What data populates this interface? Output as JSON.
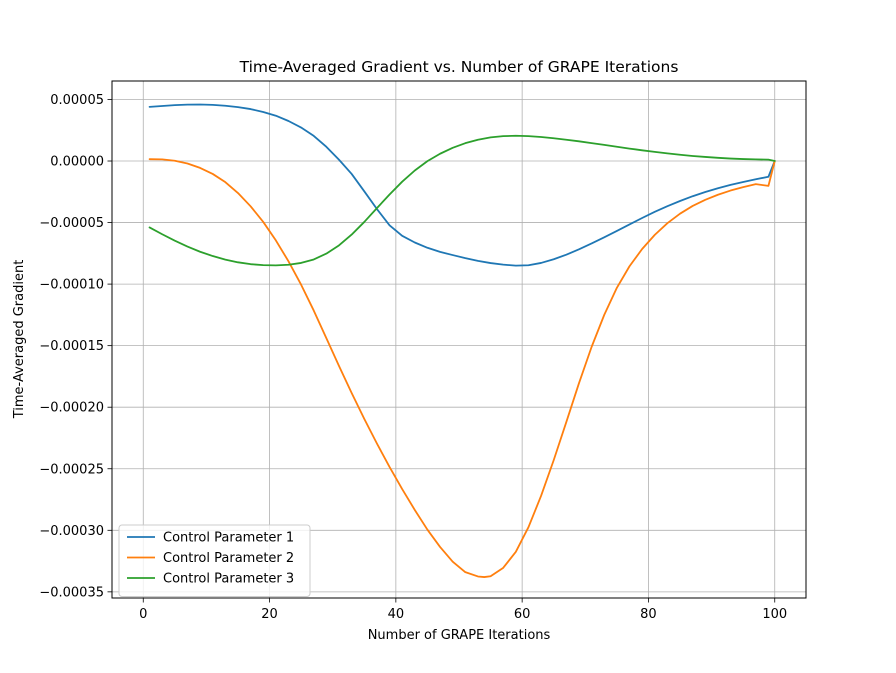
{
  "chart_data": {
    "type": "line",
    "title": "Time-Averaged Gradient vs. Number of GRAPE Iterations",
    "xlabel": "Number of GRAPE Iterations",
    "ylabel": "Time-Averaged Gradient",
    "xlim": [
      -4.95,
      104.95
    ],
    "ylim": [
      -0.000355,
      6.5e-05
    ],
    "xticks": [
      0,
      20,
      40,
      60,
      80,
      100
    ],
    "xtick_labels": [
      "0",
      "20",
      "40",
      "60",
      "80",
      "100"
    ],
    "yticks": [
      5e-05,
      0.0,
      -5e-05,
      -0.0001,
      -0.00015,
      -0.0002,
      -0.00025,
      -0.0003,
      -0.00035
    ],
    "ytick_labels": [
      "0.00005",
      "0.00000",
      "−0.00005",
      "−0.00010",
      "−0.00015",
      "−0.00020",
      "−0.00025",
      "−0.00030",
      "−0.00035"
    ],
    "grid": true,
    "legend_position": "lower-left",
    "series": [
      {
        "name": "Control Parameter 1",
        "color": "#1f77b4",
        "x": [
          1,
          3,
          5,
          7,
          9,
          11,
          13,
          15,
          17,
          19,
          21,
          23,
          25,
          27,
          29,
          31,
          33,
          35,
          37,
          39,
          41,
          43,
          45,
          47,
          49,
          51,
          53,
          55,
          57,
          59,
          61,
          63,
          65,
          67,
          69,
          71,
          73,
          75,
          77,
          79,
          81,
          83,
          85,
          87,
          89,
          91,
          93,
          95,
          97,
          99,
          100
        ],
        "y": [
          4.4e-05,
          4.47e-05,
          4.54e-05,
          4.58e-05,
          4.59e-05,
          4.56e-05,
          4.49e-05,
          4.38e-05,
          4.22e-05,
          3.98e-05,
          3.68e-05,
          3.25e-05,
          2.72e-05,
          2.04e-05,
          1.15e-05,
          1e-06,
          -1.05e-05,
          -2.46e-05,
          -3.9e-05,
          -5.22e-05,
          -6.08e-05,
          -6.62e-05,
          -7.05e-05,
          -7.38e-05,
          -7.64e-05,
          -7.89e-05,
          -8.11e-05,
          -8.29e-05,
          -8.42e-05,
          -8.5e-05,
          -8.47e-05,
          -8.28e-05,
          -7.98e-05,
          -7.61e-05,
          -7.17e-05,
          -6.7e-05,
          -6.2e-05,
          -5.68e-05,
          -5.15e-05,
          -4.63e-05,
          -4.13e-05,
          -3.67e-05,
          -3.25e-05,
          -2.86e-05,
          -2.52e-05,
          -2.21e-05,
          -1.94e-05,
          -1.7e-05,
          -1.48e-05,
          -1.28e-05,
          0.0
        ]
      },
      {
        "name": "Control Parameter 2",
        "color": "#ff7f0e",
        "x": [
          1,
          3,
          5,
          7,
          9,
          11,
          13,
          15,
          17,
          19,
          21,
          23,
          25,
          27,
          29,
          31,
          33,
          35,
          37,
          39,
          41,
          43,
          45,
          47,
          49,
          51,
          53,
          54,
          55,
          57,
          59,
          61,
          63,
          65,
          67,
          69,
          71,
          73,
          75,
          77,
          79,
          81,
          83,
          85,
          87,
          89,
          91,
          93,
          95,
          97,
          99,
          100
        ],
        "y": [
          1.5e-06,
          1.3e-06,
          2e-07,
          -2e-06,
          -5.6e-06,
          -1.05e-05,
          -1.72e-05,
          -2.6e-05,
          -3.68e-05,
          -4.95e-05,
          -6.45e-05,
          -8.15e-05,
          -0.0001005,
          -0.0001215,
          -0.000144,
          -0.0001665,
          -0.0001885,
          -0.0002095,
          -0.0002295,
          -0.0002485,
          -0.0002665,
          -0.0002835,
          -0.0002995,
          -0.0003135,
          -0.0003255,
          -0.000334,
          -0.0003375,
          -0.000338,
          -0.0003373,
          -0.0003305,
          -0.0003175,
          -0.0002975,
          -0.000272,
          -0.000243,
          -0.000212,
          -0.0001805,
          -0.000151,
          -0.000125,
          -0.000103,
          -8.55e-05,
          -7.15e-05,
          -6e-05,
          -5.05e-05,
          -4.28e-05,
          -3.65e-05,
          -3.15e-05,
          -2.74e-05,
          -2.4e-05,
          -2.12e-05,
          -1.88e-05,
          -2.02e-05,
          0.0
        ]
      },
      {
        "name": "Control Parameter 3",
        "color": "#2ca02c",
        "x": [
          1,
          3,
          5,
          7,
          9,
          11,
          13,
          15,
          17,
          19,
          21,
          23,
          25,
          27,
          29,
          31,
          33,
          35,
          37,
          39,
          41,
          43,
          45,
          47,
          49,
          51,
          53,
          55,
          57,
          59,
          61,
          63,
          65,
          67,
          69,
          71,
          73,
          75,
          77,
          79,
          81,
          83,
          85,
          87,
          89,
          91,
          93,
          95,
          97,
          99,
          100
        ],
        "y": [
          -5.4e-05,
          -5.95e-05,
          -6.47e-05,
          -6.95e-05,
          -7.37e-05,
          -7.72e-05,
          -8.01e-05,
          -8.23e-05,
          -8.38e-05,
          -8.46e-05,
          -8.48e-05,
          -8.43e-05,
          -8.28e-05,
          -8e-05,
          -7.52e-05,
          -6.85e-05,
          -5.98e-05,
          -4.95e-05,
          -3.83e-05,
          -2.72e-05,
          -1.68e-05,
          -7.7e-06,
          -1e-07,
          5.9e-06,
          1.07e-05,
          1.45e-05,
          1.73e-05,
          1.92e-05,
          2.02e-05,
          2.05e-05,
          2.02e-05,
          1.95e-05,
          1.85e-05,
          1.73e-05,
          1.6e-05,
          1.45e-05,
          1.31e-05,
          1.16e-05,
          1.01e-05,
          8.7e-06,
          7.4e-06,
          6.2e-06,
          5.1e-06,
          4.1e-06,
          3.3e-06,
          2.6e-06,
          2e-06,
          1.6e-06,
          1.3e-06,
          1.1e-06,
          0.0
        ]
      }
    ]
  }
}
